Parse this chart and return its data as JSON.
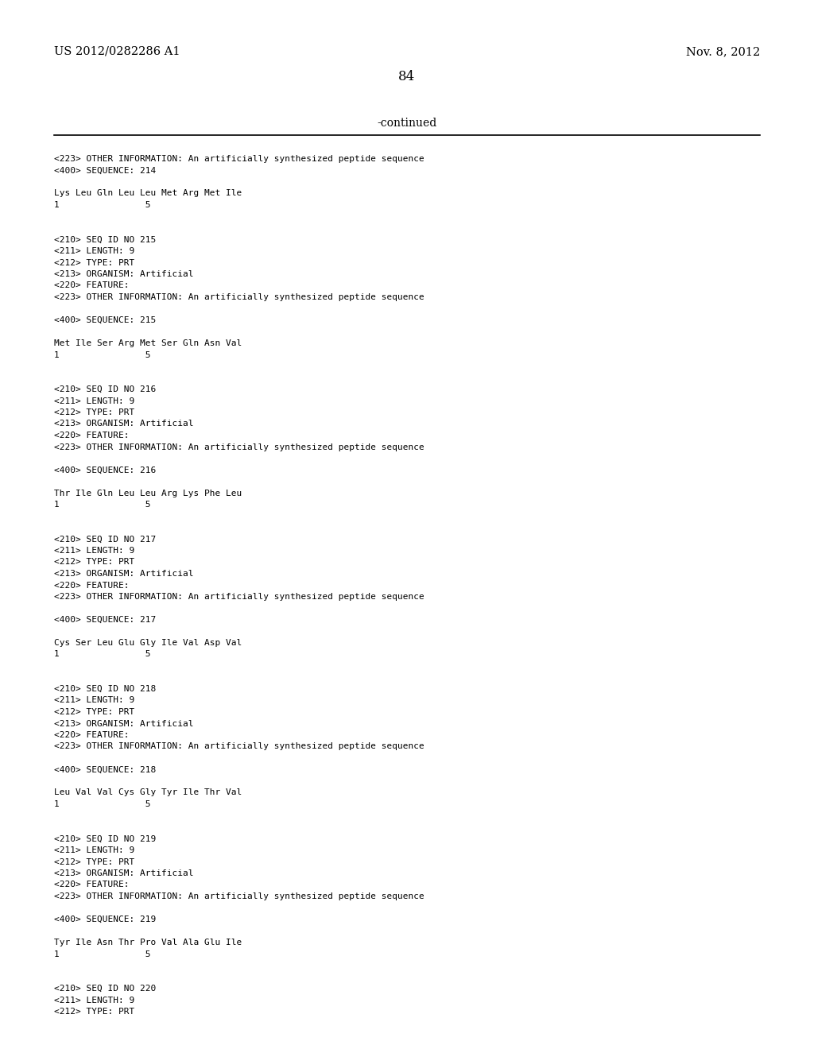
{
  "bg_color": "#ffffff",
  "header_left": "US 2012/0282286 A1",
  "header_right": "Nov. 8, 2012",
  "page_number": "84",
  "continued_text": "-continued",
  "content_lines": [
    "<223> OTHER INFORMATION: An artificially synthesized peptide sequence",
    "<400> SEQUENCE: 214",
    "",
    "Lys Leu Gln Leu Leu Met Arg Met Ile",
    "1                5",
    "",
    "",
    "<210> SEQ ID NO 215",
    "<211> LENGTH: 9",
    "<212> TYPE: PRT",
    "<213> ORGANISM: Artificial",
    "<220> FEATURE:",
    "<223> OTHER INFORMATION: An artificially synthesized peptide sequence",
    "",
    "<400> SEQUENCE: 215",
    "",
    "Met Ile Ser Arg Met Ser Gln Asn Val",
    "1                5",
    "",
    "",
    "<210> SEQ ID NO 216",
    "<211> LENGTH: 9",
    "<212> TYPE: PRT",
    "<213> ORGANISM: Artificial",
    "<220> FEATURE:",
    "<223> OTHER INFORMATION: An artificially synthesized peptide sequence",
    "",
    "<400> SEQUENCE: 216",
    "",
    "Thr Ile Gln Leu Leu Arg Lys Phe Leu",
    "1                5",
    "",
    "",
    "<210> SEQ ID NO 217",
    "<211> LENGTH: 9",
    "<212> TYPE: PRT",
    "<213> ORGANISM: Artificial",
    "<220> FEATURE:",
    "<223> OTHER INFORMATION: An artificially synthesized peptide sequence",
    "",
    "<400> SEQUENCE: 217",
    "",
    "Cys Ser Leu Glu Gly Ile Val Asp Val",
    "1                5",
    "",
    "",
    "<210> SEQ ID NO 218",
    "<211> LENGTH: 9",
    "<212> TYPE: PRT",
    "<213> ORGANISM: Artificial",
    "<220> FEATURE:",
    "<223> OTHER INFORMATION: An artificially synthesized peptide sequence",
    "",
    "<400> SEQUENCE: 218",
    "",
    "Leu Val Val Cys Gly Tyr Ile Thr Val",
    "1                5",
    "",
    "",
    "<210> SEQ ID NO 219",
    "<211> LENGTH: 9",
    "<212> TYPE: PRT",
    "<213> ORGANISM: Artificial",
    "<220> FEATURE:",
    "<223> OTHER INFORMATION: An artificially synthesized peptide sequence",
    "",
    "<400> SEQUENCE: 219",
    "",
    "Tyr Ile Asn Thr Pro Val Ala Glu Ile",
    "1                5",
    "",
    "",
    "<210> SEQ ID NO 220",
    "<211> LENGTH: 9",
    "<212> TYPE: PRT"
  ],
  "mono_fontsize": 8.0,
  "header_fontsize": 10.5,
  "page_num_fontsize": 12,
  "continued_fontsize": 10
}
